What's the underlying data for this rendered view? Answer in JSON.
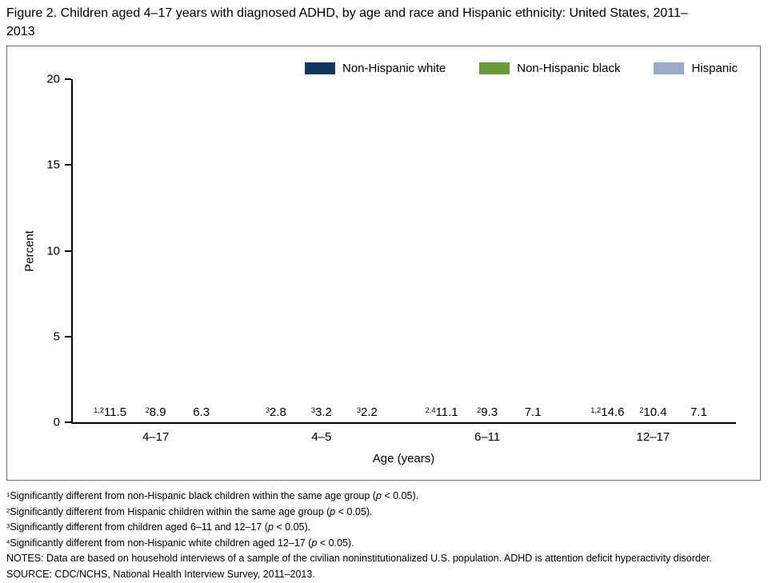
{
  "title": "Figure 2. Children aged 4–17 years with diagnosed ADHD, by age and race and Hispanic ethnicity: United States, 2011–2013",
  "chart_data": {
    "type": "bar",
    "title": "Children aged 4–17 years with diagnosed ADHD, by age and race and Hispanic ethnicity: United States, 2011–2013",
    "xlabel": "Age (years)",
    "ylabel": "Percent",
    "ylim": [
      0,
      20
    ],
    "yticks": [
      0,
      5,
      10,
      15,
      20
    ],
    "grid": false,
    "legend_position": "top",
    "categories": [
      "4–17",
      "4–5",
      "6–11",
      "12–17"
    ],
    "series": [
      {
        "name": "Non-Hispanic white",
        "color": "#11395f",
        "values": [
          11.5,
          2.8,
          11.1,
          14.6
        ],
        "sups": [
          "1,2",
          "3",
          "2,4",
          "1,2"
        ]
      },
      {
        "name": "Non-Hispanic black",
        "color": "#689a36",
        "values": [
          8.9,
          3.2,
          9.3,
          10.4
        ],
        "sups": [
          "2",
          "3",
          "2",
          "2"
        ]
      },
      {
        "name": "Hispanic",
        "color": "#9caac9",
        "values": [
          6.3,
          2.2,
          7.1,
          7.1
        ],
        "sups": [
          "",
          "3",
          "",
          ""
        ]
      }
    ]
  },
  "footnotes": [
    {
      "sup": "1",
      "text": "Significantly different from non-Hispanic black children within the same age group (p < 0.05)."
    },
    {
      "sup": "2",
      "text": "Significantly different from Hispanic children within the same age group (p < 0.05)."
    },
    {
      "sup": "3",
      "text": "Significantly different from children aged 6–11 and 12–17 (p < 0.05)."
    },
    {
      "sup": "4",
      "text": "Significantly different from non-Hispanic white children aged 12–17 (p < 0.05)."
    },
    {
      "sup": "",
      "text": "NOTES: Data are based on household interviews of a sample of the civilian noninstitutionalized U.S. population. ADHD is attention deficit hyperactivity disorder."
    },
    {
      "sup": "",
      "text": "SOURCE: CDC/NCHS, National Health Interview Survey, 2011–2013."
    }
  ]
}
